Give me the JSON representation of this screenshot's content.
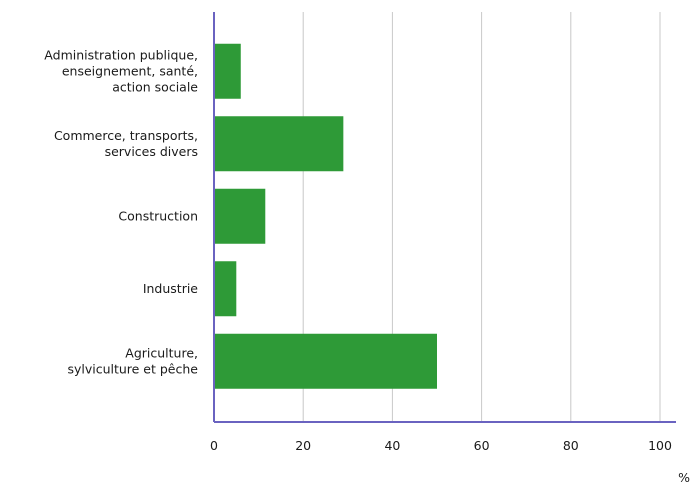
{
  "chart_data": {
    "type": "bar",
    "orientation": "horizontal",
    "categories": [
      [
        "Administration publique,",
        "enseignement, santé,",
        "action sociale"
      ],
      [
        "Commerce, transports,",
        "services divers"
      ],
      [
        "Construction"
      ],
      [
        "Industrie"
      ],
      [
        "Agriculture,",
        "sylviculture et pêche"
      ]
    ],
    "values": [
      6,
      29,
      11.5,
      5,
      50
    ],
    "xlim": [
      0,
      100
    ],
    "xticks": [
      "0",
      "20",
      "40",
      "60",
      "80",
      "100"
    ],
    "xunit": "%",
    "grid": "vertical",
    "bar_color": "#2e9a37",
    "axis_color": "#6a63c0",
    "grid_color": "#c8c8c8"
  }
}
